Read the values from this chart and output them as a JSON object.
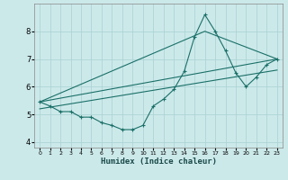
{
  "xlabel": "Humidex (Indice chaleur)",
  "x_ticks": [
    0,
    1,
    2,
    3,
    4,
    5,
    6,
    7,
    8,
    9,
    10,
    11,
    12,
    13,
    14,
    15,
    16,
    17,
    18,
    19,
    20,
    21,
    22,
    23
  ],
  "ylim": [
    3.8,
    9.0
  ],
  "xlim": [
    -0.5,
    23.5
  ],
  "yticks": [
    4,
    5,
    6,
    7,
    8
  ],
  "background_color": "#cce9ea",
  "grid_color": "#aed4d5",
  "line_color": "#1a7068",
  "curve1_x": [
    0,
    1,
    2,
    3,
    4,
    5,
    6,
    7,
    8,
    9,
    10,
    11,
    12,
    13,
    14,
    15,
    16,
    17,
    18,
    19,
    20,
    21,
    22,
    23
  ],
  "curve1_y": [
    5.45,
    5.3,
    5.1,
    5.1,
    4.9,
    4.9,
    4.7,
    4.6,
    4.45,
    4.45,
    4.6,
    5.3,
    5.55,
    5.9,
    6.55,
    7.8,
    8.6,
    8.0,
    7.3,
    6.5,
    6.0,
    6.35,
    6.8,
    7.0
  ],
  "curve2_x": [
    0,
    23
  ],
  "curve2_y": [
    5.45,
    7.0
  ],
  "curve3_x": [
    0,
    23
  ],
  "curve3_y": [
    5.2,
    6.6
  ],
  "curve4_x": [
    0,
    16,
    23
  ],
  "curve4_y": [
    5.45,
    8.0,
    7.0
  ]
}
